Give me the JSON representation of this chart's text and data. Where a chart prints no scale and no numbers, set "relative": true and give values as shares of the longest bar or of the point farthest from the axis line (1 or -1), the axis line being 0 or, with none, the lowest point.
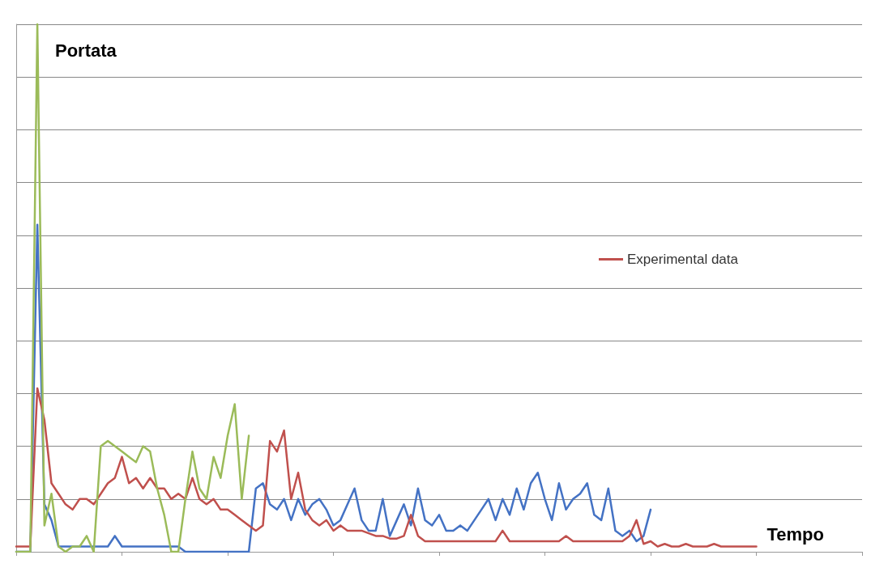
{
  "chart_data": {
    "type": "line",
    "title": "Portata",
    "xlabel": "Tempo",
    "relative": true,
    "grid": "y",
    "legend": "right",
    "marker": "none",
    "line_style": "solid",
    "categories": [
      null,
      null,
      null,
      null,
      null,
      null,
      null,
      null,
      null,
      null,
      null,
      null,
      null,
      null,
      null,
      null,
      null,
      null,
      null,
      null,
      null,
      null,
      null,
      null,
      null,
      null,
      null,
      null,
      null,
      null,
      null,
      null,
      null,
      null,
      null,
      null,
      null,
      null,
      null,
      null,
      null,
      null,
      null,
      null,
      null,
      null,
      null,
      null,
      null,
      null,
      null,
      null,
      null,
      null,
      null,
      null,
      null,
      null,
      null,
      null,
      null,
      null,
      null,
      null,
      null,
      null,
      null,
      null,
      null,
      null,
      null,
      null,
      null,
      null,
      null,
      null,
      null,
      null,
      null,
      null,
      null,
      null,
      null,
      null,
      null,
      null,
      null,
      null,
      null,
      null,
      null,
      null,
      null,
      null,
      null,
      null,
      null,
      null,
      null,
      null,
      null,
      null,
      null,
      null,
      null,
      null,
      null,
      null,
      null,
      null,
      null,
      null,
      null,
      null,
      null,
      null,
      null,
      null,
      null,
      null,
      null
    ],
    "series": [
      {
        "color": "#4472c4",
        "values": [
          0,
          0,
          0,
          0.62,
          0.09,
          0.06,
          0.01,
          0.01,
          0.01,
          0.01,
          0.01,
          0.01,
          0.01,
          0.01,
          0.03,
          0.01,
          0.01,
          0.01,
          0.01,
          0.01,
          0.01,
          0.01,
          0.01,
          0.01,
          0,
          0,
          0,
          0,
          0,
          0,
          0,
          0,
          0,
          0,
          0.12,
          0.13,
          0.09,
          0.08,
          0.1,
          0.06,
          0.1,
          0.07,
          0.09,
          0.1,
          0.08,
          0.05,
          0.06,
          0.09,
          0.12,
          0.06,
          0.04,
          0.04,
          0.1,
          0.03,
          0.06,
          0.09,
          0.05,
          0.12,
          0.06,
          0.05,
          0.07,
          0.04,
          0.04,
          0.05,
          0.04,
          0.06,
          0.08,
          0.1,
          0.06,
          0.1,
          0.07,
          0.12,
          0.08,
          0.13,
          0.15,
          0.1,
          0.06,
          0.13,
          0.08,
          0.1,
          0.11,
          0.13,
          0.07,
          0.06,
          0.12,
          0.04,
          0.03,
          0.04,
          0.02,
          0.03,
          0.08,
          null,
          null,
          null,
          null,
          null,
          null,
          null,
          null,
          null,
          null,
          null,
          null,
          null,
          null,
          null,
          null,
          null,
          null,
          null,
          null,
          null,
          null,
          null,
          null,
          null,
          null,
          null,
          null,
          null,
          null
        ]
      },
      {
        "name": "Experimental data",
        "color": "#c0504d",
        "values": [
          0.01,
          0.01,
          0.01,
          0.31,
          0.25,
          0.13,
          0.11,
          0.09,
          0.08,
          0.1,
          0.1,
          0.09,
          0.11,
          0.13,
          0.14,
          0.18,
          0.13,
          0.14,
          0.12,
          0.14,
          0.12,
          0.12,
          0.1,
          0.11,
          0.1,
          0.14,
          0.1,
          0.09,
          0.1,
          0.08,
          0.08,
          0.07,
          0.06,
          0.05,
          0.04,
          0.05,
          0.21,
          0.19,
          0.23,
          0.1,
          0.15,
          0.08,
          0.06,
          0.05,
          0.06,
          0.04,
          0.05,
          0.04,
          0.04,
          0.04,
          0.035,
          0.03,
          0.03,
          0.025,
          0.025,
          0.03,
          0.07,
          0.03,
          0.02,
          0.02,
          0.02,
          0.02,
          0.02,
          0.02,
          0.02,
          0.02,
          0.02,
          0.02,
          0.02,
          0.04,
          0.02,
          0.02,
          0.02,
          0.02,
          0.02,
          0.02,
          0.02,
          0.02,
          0.03,
          0.02,
          0.02,
          0.02,
          0.02,
          0.02,
          0.02,
          0.02,
          0.02,
          0.03,
          0.06,
          0.015,
          0.02,
          0.01,
          0.015,
          0.01,
          0.01,
          0.015,
          0.01,
          0.01,
          0.01,
          0.015,
          0.01,
          0.01,
          0.01,
          0.01,
          0.01,
          0.01,
          null,
          null,
          null,
          null,
          null,
          null,
          null,
          null,
          null,
          null,
          null,
          null,
          null,
          null,
          null
        ]
      },
      {
        "color": "#9bbb59",
        "values": [
          0,
          0,
          0,
          1,
          0.05,
          0.11,
          0.01,
          0,
          0.01,
          0.01,
          0.03,
          0,
          0.2,
          0.21,
          0.2,
          0.19,
          0.18,
          0.17,
          0.2,
          0.19,
          0.12,
          0.07,
          0,
          0,
          0.1,
          0.19,
          0.12,
          0.1,
          0.18,
          0.14,
          0.22,
          0.28,
          0.1,
          0.22,
          null,
          null,
          null,
          null,
          null,
          null,
          null,
          null,
          null,
          null,
          null,
          null,
          null,
          null,
          null,
          null,
          null,
          null,
          null,
          null,
          null,
          null,
          null,
          null,
          null,
          null,
          null,
          null,
          null,
          null,
          null,
          null,
          null,
          null,
          null,
          null,
          null,
          null,
          null,
          null,
          null,
          null,
          null,
          null,
          null,
          null,
          null,
          null,
          null,
          null,
          null,
          null,
          null,
          null,
          null,
          null,
          null,
          null,
          null,
          null,
          null,
          null,
          null,
          null,
          null,
          null,
          null,
          null,
          null,
          null,
          null,
          null,
          null,
          null,
          null,
          null,
          null,
          null,
          null,
          null,
          null,
          null,
          null,
          null,
          null,
          null,
          null
        ]
      }
    ]
  }
}
